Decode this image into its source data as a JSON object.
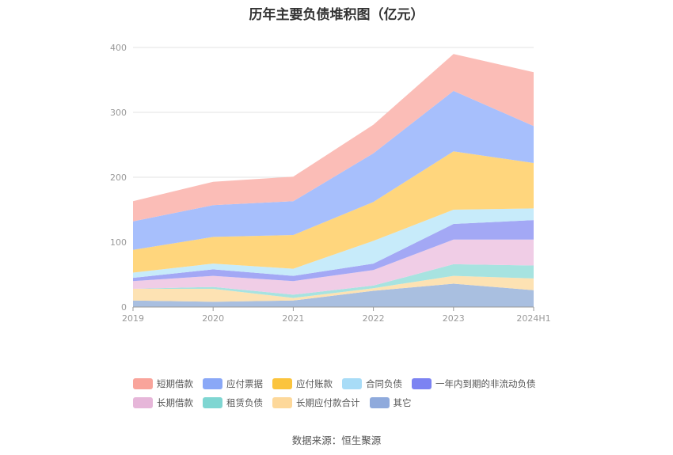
{
  "chart_data": {
    "type": "area",
    "stacked": true,
    "title": "历年主要负债堆积图（亿元）",
    "categories": [
      "2019",
      "2020",
      "2021",
      "2022",
      "2023",
      "2024H1"
    ],
    "ylim": [
      0,
      400
    ],
    "yticks": [
      0,
      100,
      200,
      300,
      400
    ],
    "series": [
      {
        "name": "其它",
        "color": "#a9bfe0",
        "legend_color": "#8faadc",
        "values": [
          10,
          8,
          10,
          25,
          36,
          26
        ]
      },
      {
        "name": "长期应付款合计",
        "color": "#fde2b3",
        "legend_color": "#fdd89a",
        "values": [
          18,
          20,
          4,
          4,
          12,
          18
        ]
      },
      {
        "name": "租赁负债",
        "color": "#a7e3e0",
        "legend_color": "#7fd6d2",
        "values": [
          0,
          3,
          5,
          4,
          18,
          20
        ]
      },
      {
        "name": "长期借款",
        "color": "#f0cde6",
        "legend_color": "#e6b6d9",
        "values": [
          12,
          17,
          21,
          24,
          38,
          40
        ]
      },
      {
        "name": "一年内到期的非流动负债",
        "color": "#a3a8f5",
        "legend_color": "#7c83f2",
        "values": [
          5,
          10,
          8,
          10,
          24,
          30
        ]
      },
      {
        "name": "合同负债",
        "color": "#c7ebfa",
        "legend_color": "#a8dcf7",
        "values": [
          8,
          9,
          11,
          35,
          22,
          18
        ]
      },
      {
        "name": "应付账款",
        "color": "#ffd67d",
        "legend_color": "#fbc43d",
        "values": [
          35,
          41,
          52,
          60,
          90,
          70
        ]
      },
      {
        "name": "应付票据",
        "color": "#a7bffc",
        "legend_color": "#8aa8f7",
        "values": [
          44,
          49,
          52,
          75,
          93,
          57
        ]
      },
      {
        "name": "短期借款",
        "color": "#fbbdb7",
        "legend_color": "#f9a49b",
        "values": [
          31,
          36,
          38,
          44,
          57,
          83
        ]
      }
    ],
    "legend_order": [
      "短期借款",
      "应付票据",
      "应付账款",
      "合同负债",
      "一年内到期的非流动负债",
      "长期借款",
      "租赁负债",
      "长期应付款合计",
      "其它"
    ],
    "legend_position": "bottom"
  },
  "source": "数据来源：恒生聚源"
}
